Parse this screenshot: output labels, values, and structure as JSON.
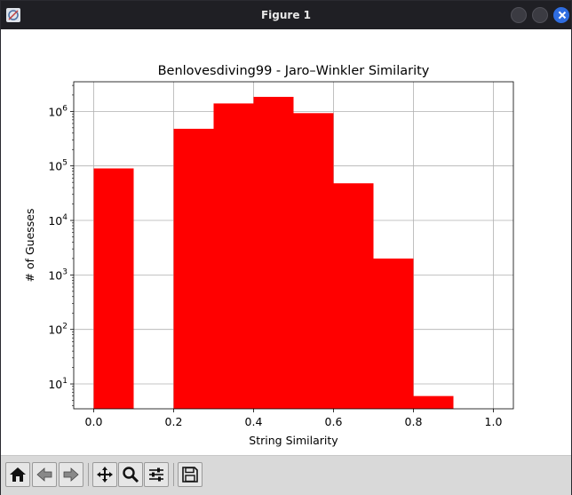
{
  "window": {
    "title": "Figure 1"
  },
  "chart_data": {
    "type": "bar",
    "title": "Benlovesdiving99 - Jaro–Winkler Similarity",
    "xlabel": "String Similarity",
    "ylabel": "# of Guesses",
    "yscale": "log",
    "xlim": [
      -0.05,
      1.05
    ],
    "ylim": [
      3.5,
      3500000
    ],
    "grid": true,
    "bar_color": "#ff0000",
    "bins": [
      {
        "x0": 0.0,
        "x1": 0.1,
        "value": 90000
      },
      {
        "x0": 0.1,
        "x1": 0.2,
        "value": 0
      },
      {
        "x0": 0.2,
        "x1": 0.3,
        "value": 480000
      },
      {
        "x0": 0.3,
        "x1": 0.4,
        "value": 1400000
      },
      {
        "x0": 0.4,
        "x1": 0.5,
        "value": 1850000
      },
      {
        "x0": 0.5,
        "x1": 0.6,
        "value": 930000
      },
      {
        "x0": 0.6,
        "x1": 0.7,
        "value": 48000
      },
      {
        "x0": 0.7,
        "x1": 0.8,
        "value": 2000
      },
      {
        "x0": 0.8,
        "x1": 0.9,
        "value": 6
      },
      {
        "x0": 0.9,
        "x1": 1.0,
        "value": 0
      }
    ],
    "xticks": [
      {
        "value": 0.0,
        "label": "0.0"
      },
      {
        "value": 0.2,
        "label": "0.2"
      },
      {
        "value": 0.4,
        "label": "0.4"
      },
      {
        "value": 0.6,
        "label": "0.6"
      },
      {
        "value": 0.8,
        "label": "0.8"
      },
      {
        "value": 1.0,
        "label": "1.0"
      }
    ],
    "yticks": [
      {
        "value": 10,
        "base": "10",
        "exp": "1"
      },
      {
        "value": 100,
        "base": "10",
        "exp": "2"
      },
      {
        "value": 1000,
        "base": "10",
        "exp": "3"
      },
      {
        "value": 10000,
        "base": "10",
        "exp": "4"
      },
      {
        "value": 100000,
        "base": "10",
        "exp": "5"
      },
      {
        "value": 1000000,
        "base": "10",
        "exp": "6"
      }
    ]
  },
  "toolbar": {
    "tools": [
      {
        "name": "home-button",
        "icon": "home-icon"
      },
      {
        "name": "back-button",
        "icon": "back-arrow-icon"
      },
      {
        "name": "forward-button",
        "icon": "forward-arrow-icon"
      },
      {
        "name": "pan-button",
        "icon": "move-icon"
      },
      {
        "name": "zoom-button",
        "icon": "magnifier-icon"
      },
      {
        "name": "configure-subplots-button",
        "icon": "sliders-icon"
      },
      {
        "name": "save-button",
        "icon": "floppy-disk-icon"
      }
    ]
  }
}
